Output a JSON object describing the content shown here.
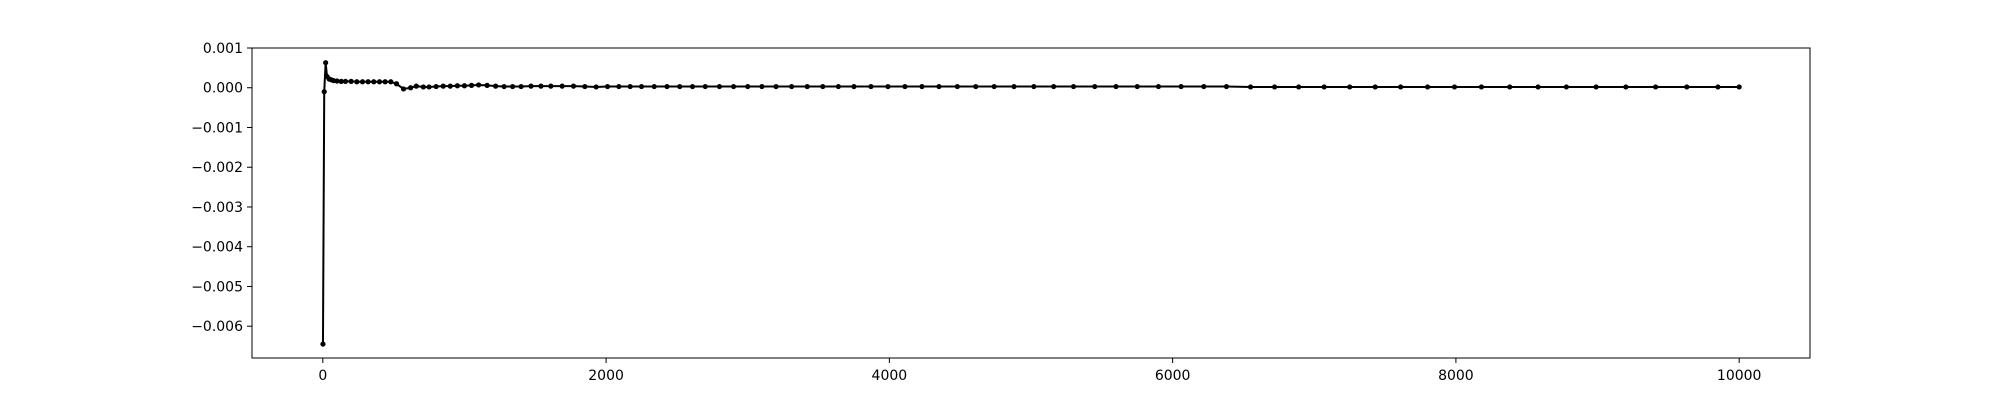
{
  "chart_data": {
    "type": "line",
    "title": "",
    "xlabel": "",
    "ylabel": "",
    "xlim": [
      -500,
      10500
    ],
    "ylim": [
      -0.0068,
      0.001
    ],
    "grid": false,
    "legend": "none",
    "x_ticks": [
      0,
      2000,
      4000,
      6000,
      8000,
      10000
    ],
    "y_ticks": [
      0.001,
      0.0,
      -0.001,
      -0.002,
      -0.003,
      -0.004,
      -0.005,
      -0.006
    ],
    "x_tick_labels": [
      "0",
      "2000",
      "4000",
      "6000",
      "8000",
      "10000"
    ],
    "y_tick_labels": [
      "0.001",
      "0.000",
      "−0.001",
      "−0.002",
      "−0.003",
      "−0.004",
      "−0.005",
      "−0.006"
    ],
    "series": [
      {
        "color": "#000000",
        "marker": "circle",
        "points": [
          [
            1,
            -0.00645
          ],
          [
            10,
            -0.0001
          ],
          [
            20,
            0.00063
          ],
          [
            30,
            0.00028
          ],
          [
            45,
            0.00022
          ],
          [
            60,
            0.0002
          ],
          [
            75,
            0.00018
          ],
          [
            100,
            0.00017
          ],
          [
            130,
            0.00016
          ],
          [
            160,
            0.00016
          ],
          [
            200,
            0.00016
          ],
          [
            240,
            0.00015
          ],
          [
            280,
            0.00015
          ],
          [
            320,
            0.00015
          ],
          [
            360,
            0.00015
          ],
          [
            400,
            0.00015
          ],
          [
            440,
            0.00015
          ],
          [
            480,
            0.00015
          ],
          [
            520,
            0.0001
          ],
          [
            570,
            -3e-05
          ],
          [
            620,
            0.0
          ],
          [
            660,
            4e-05
          ],
          [
            710,
            2e-05
          ],
          [
            750,
            2e-05
          ],
          [
            800,
            3e-05
          ],
          [
            850,
            4e-05
          ],
          [
            900,
            4e-05
          ],
          [
            950,
            5e-05
          ],
          [
            1000,
            5e-05
          ],
          [
            1050,
            6e-05
          ],
          [
            1100,
            7e-05
          ],
          [
            1160,
            6e-05
          ],
          [
            1220,
            4e-05
          ],
          [
            1280,
            3e-05
          ],
          [
            1340,
            3e-05
          ],
          [
            1400,
            3e-05
          ],
          [
            1470,
            4e-05
          ],
          [
            1540,
            4e-05
          ],
          [
            1610,
            4e-05
          ],
          [
            1690,
            4e-05
          ],
          [
            1770,
            4e-05
          ],
          [
            1850,
            3e-05
          ],
          [
            1930,
            2e-05
          ],
          [
            2010,
            3e-05
          ],
          [
            2090,
            3e-05
          ],
          [
            2170,
            3e-05
          ],
          [
            2250,
            3e-05
          ],
          [
            2340,
            3e-05
          ],
          [
            2430,
            3e-05
          ],
          [
            2520,
            3e-05
          ],
          [
            2610,
            3e-05
          ],
          [
            2700,
            3e-05
          ],
          [
            2800,
            3e-05
          ],
          [
            2900,
            3e-05
          ],
          [
            3000,
            3e-05
          ],
          [
            3100,
            3e-05
          ],
          [
            3200,
            3e-05
          ],
          [
            3310,
            3e-05
          ],
          [
            3420,
            3e-05
          ],
          [
            3530,
            3e-05
          ],
          [
            3640,
            3e-05
          ],
          [
            3750,
            3e-05
          ],
          [
            3870,
            3e-05
          ],
          [
            3990,
            3e-05
          ],
          [
            4110,
            3e-05
          ],
          [
            4230,
            3e-05
          ],
          [
            4350,
            3e-05
          ],
          [
            4480,
            3e-05
          ],
          [
            4610,
            3e-05
          ],
          [
            4740,
            3e-05
          ],
          [
            4880,
            3e-05
          ],
          [
            5020,
            3e-05
          ],
          [
            5160,
            3e-05
          ],
          [
            5300,
            3e-05
          ],
          [
            5450,
            3e-05
          ],
          [
            5600,
            3e-05
          ],
          [
            5750,
            3e-05
          ],
          [
            5900,
            3e-05
          ],
          [
            6060,
            3e-05
          ],
          [
            6220,
            3e-05
          ],
          [
            6380,
            3e-05
          ],
          [
            6550,
            2e-05
          ],
          [
            6720,
            2e-05
          ],
          [
            6890,
            2e-05
          ],
          [
            7070,
            2e-05
          ],
          [
            7250,
            2e-05
          ],
          [
            7430,
            2e-05
          ],
          [
            7610,
            2e-05
          ],
          [
            7800,
            2e-05
          ],
          [
            7990,
            2e-05
          ],
          [
            8180,
            2e-05
          ],
          [
            8380,
            2e-05
          ],
          [
            8580,
            2e-05
          ],
          [
            8780,
            2e-05
          ],
          [
            8990,
            2e-05
          ],
          [
            9200,
            2e-05
          ],
          [
            9410,
            2e-05
          ],
          [
            9630,
            2e-05
          ],
          [
            9850,
            2e-05
          ],
          [
            10000,
            2e-05
          ]
        ]
      }
    ]
  }
}
